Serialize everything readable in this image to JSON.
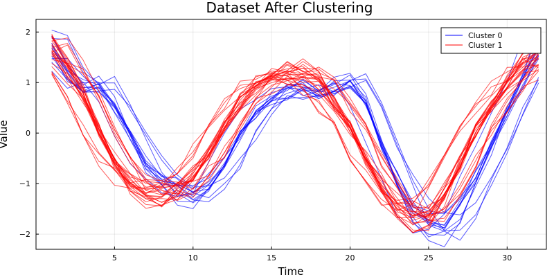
{
  "chart_data": {
    "type": "line",
    "title": "Dataset After Clustering",
    "xlabel": "Time",
    "ylabel": "Value",
    "xlim": [
      0.0,
      32.5
    ],
    "ylim": [
      -2.3,
      2.25
    ],
    "xticks": [
      5,
      10,
      15,
      20,
      25,
      30
    ],
    "yticks": [
      -2,
      -1,
      0,
      1,
      2
    ],
    "grid": true,
    "legend_position": "top-right",
    "series": [
      {
        "name": "Cluster 0",
        "color": "#0000ff",
        "count": 14,
        "seed": 11,
        "noise": 0.12,
        "keypoints": [
          [
            1,
            1.75
          ],
          [
            2,
            1.2
          ],
          [
            3,
            0.9
          ],
          [
            4,
            0.95
          ],
          [
            5,
            0.55
          ],
          [
            6,
            -0.05
          ],
          [
            7,
            -0.6
          ],
          [
            8,
            -0.95
          ],
          [
            9,
            -1.15
          ],
          [
            10,
            -1.2
          ],
          [
            11,
            -1.05
          ],
          [
            12,
            -0.6
          ],
          [
            13,
            -0.05
          ],
          [
            14,
            0.4
          ],
          [
            15,
            0.7
          ],
          [
            16,
            0.85
          ],
          [
            17,
            0.9
          ],
          [
            18,
            0.8
          ],
          [
            19,
            0.9
          ],
          [
            20,
            1.05
          ],
          [
            21,
            0.6
          ],
          [
            22,
            -0.2
          ],
          [
            23,
            -0.95
          ],
          [
            24,
            -1.55
          ],
          [
            25,
            -1.85
          ],
          [
            26,
            -1.9
          ],
          [
            27,
            -1.5
          ],
          [
            28,
            -0.9
          ],
          [
            29,
            -0.3
          ],
          [
            30,
            0.4
          ],
          [
            31,
            1.05
          ],
          [
            32,
            1.75
          ]
        ]
      },
      {
        "name": "Cluster 1",
        "color": "#ff0000",
        "count": 26,
        "seed": 29,
        "noise": 0.14,
        "keypoints": [
          [
            1,
            1.65
          ],
          [
            2,
            1.25
          ],
          [
            3,
            0.75
          ],
          [
            4,
            0.05
          ],
          [
            5,
            -0.55
          ],
          [
            6,
            -0.95
          ],
          [
            7,
            -1.2
          ],
          [
            8,
            -1.22
          ],
          [
            9,
            -1.1
          ],
          [
            10,
            -0.85
          ],
          [
            11,
            -0.4
          ],
          [
            12,
            0.15
          ],
          [
            13,
            0.6
          ],
          [
            14,
            0.95
          ],
          [
            15,
            1.1
          ],
          [
            16,
            1.2
          ],
          [
            17,
            1.2
          ],
          [
            18,
            1.0
          ],
          [
            19,
            0.6
          ],
          [
            20,
            0.1
          ],
          [
            21,
            -0.5
          ],
          [
            22,
            -1.0
          ],
          [
            23,
            -1.45
          ],
          [
            24,
            -1.65
          ],
          [
            25,
            -1.6
          ],
          [
            26,
            -1.2
          ],
          [
            27,
            -0.6
          ],
          [
            28,
            0.05
          ],
          [
            29,
            0.55
          ],
          [
            30,
            0.95
          ],
          [
            31,
            1.3
          ],
          [
            32,
            1.55
          ]
        ]
      }
    ]
  }
}
